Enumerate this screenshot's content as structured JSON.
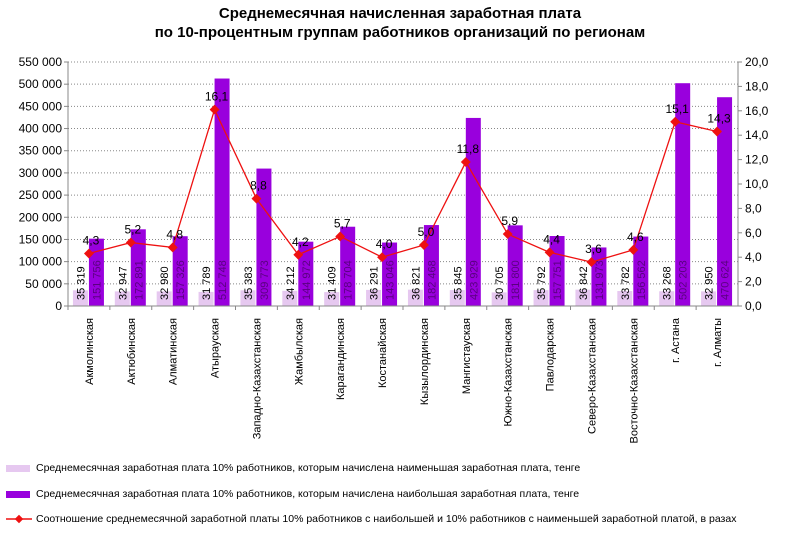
{
  "chart_data": {
    "type": "bar",
    "title": "Среднемесячная начисленная заработная плата по 10-процентным группам работников организаций по регионам",
    "title_lines": [
      "Среднемесячная начисленная заработная плата",
      "по 10-процентным группам работников организаций по регионам"
    ],
    "categories": [
      "Акмолинская",
      "Актюбинская",
      "Алматинская",
      "Атырауская",
      "Западно-Казахстанская",
      "Жамбылская",
      "Карагандинская",
      "Костанайская",
      "Кызылординская",
      "Мангистауская",
      "Южно-Казахстанская",
      "Павлодарская",
      "Северо-Казахстанская",
      "Восточно-Казахстанская",
      "г. Астана",
      "г. Алматы"
    ],
    "series": [
      {
        "name": "Среднемесячная заработная плата 10% работников, которым начислена наименьшая заработная плата, тенге",
        "type": "bar",
        "axis": "left",
        "color": "#e6c8f0",
        "values": [
          35319,
          32947,
          32980,
          31789,
          35383,
          34212,
          31409,
          36291,
          36821,
          35845,
          30705,
          35792,
          36842,
          33782,
          33268,
          32950
        ],
        "labels": [
          "35 319",
          "32 947",
          "32 980",
          "31 789",
          "35 383",
          "34 212",
          "31 409",
          "36 291",
          "36 821",
          "35 845",
          "30 705",
          "35 792",
          "36 842",
          "33 782",
          "33 268",
          "32 950"
        ]
      },
      {
        "name": "Среднемесячная заработная плата 10% работников, которым начислена наибольшая заработная плата, тенге",
        "type": "bar",
        "axis": "left",
        "color": "#9900dd",
        "values": [
          151756,
          172891,
          157326,
          512748,
          309773,
          144972,
          178704,
          143046,
          182468,
          423929,
          181800,
          157751,
          131973,
          156562,
          502203,
          470624
        ],
        "labels": [
          "151 756",
          "172 891",
          "157 326",
          "512 748",
          "309 773",
          "144 972",
          "178 704",
          "143 046",
          "182 468",
          "423 929",
          "181 800",
          "157 751",
          "131 973",
          "156 562",
          "502 203",
          "470 624"
        ]
      },
      {
        "name": "Соотношение среднемесячной заработной платы 10% работников с наибольшей и 10% работников с наименьшей заработной платой, в разах",
        "type": "line",
        "axis": "right",
        "color": "#ee1111",
        "values": [
          4.3,
          5.2,
          4.8,
          16.1,
          8.8,
          4.2,
          5.7,
          4.0,
          5.0,
          11.8,
          5.9,
          4.4,
          3.6,
          4.6,
          15.1,
          14.3
        ],
        "labels": [
          "4,3",
          "5,2",
          "4,8",
          "16,1",
          "8,8",
          "4,2",
          "5,7",
          "4,0",
          "5,0",
          "11,8",
          "5,9",
          "4,4",
          "3,6",
          "4,6",
          "15,1",
          "14,3"
        ]
      }
    ],
    "ylim": [
      0,
      550000
    ],
    "y2lim": [
      0,
      20
    ],
    "yticks": [
      "0",
      "50 000",
      "100 000",
      "150 000",
      "200 000",
      "250 000",
      "300 000",
      "350 000",
      "400 000",
      "450 000",
      "500 000",
      "550 000"
    ],
    "y2ticks": [
      "0,0",
      "2,0",
      "4,0",
      "6,0",
      "8,0",
      "10,0",
      "12,0",
      "14,0",
      "16,0",
      "18,0",
      "20,0"
    ],
    "grid": true,
    "legend_position": "bottom"
  }
}
